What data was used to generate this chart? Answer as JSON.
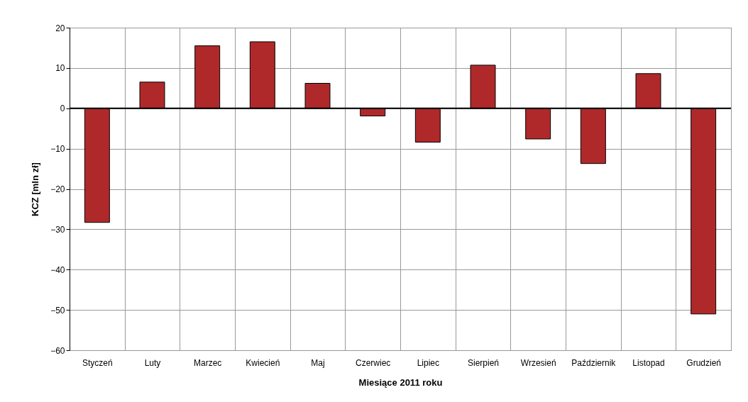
{
  "chart_data": {
    "type": "bar",
    "xlabel": "Miesiące 2011 roku",
    "ylabel": "KCZ [mln zł]",
    "categories": [
      "Styczeń",
      "Luty",
      "Marzec",
      "Kwiecień",
      "Maj",
      "Czerwiec",
      "Lipiec",
      "Sierpień",
      "Wrzesień",
      "Październik",
      "Listopad",
      "Grudzień"
    ],
    "series": [
      {
        "color": "#b0292a",
        "values": [
          -28.3,
          6.5,
          15.5,
          16.5,
          6.2,
          -1.9,
          -8.4,
          10.7,
          -7.6,
          -13.7,
          8.6,
          -51
        ]
      }
    ],
    "ylim": [
      -60,
      20
    ],
    "yticks": [
      -60,
      -50,
      -40,
      -30,
      -20,
      -10,
      0,
      10,
      20
    ],
    "grid": true,
    "legend": false,
    "ref_lines": [
      {
        "axis": "y",
        "value": 0,
        "color": "#000000"
      }
    ]
  }
}
